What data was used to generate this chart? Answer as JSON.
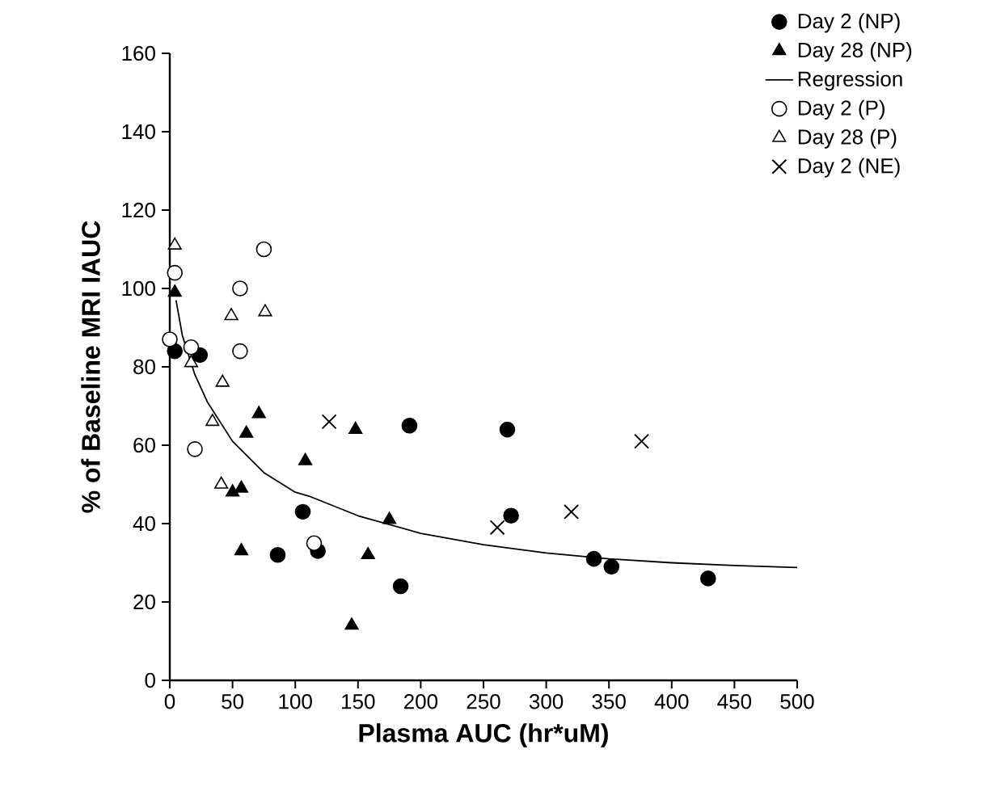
{
  "chart_data": {
    "type": "scatter",
    "xlabel": "Plasma AUC (hr*uM)",
    "ylabel": "% of Baseline MRI IAUC",
    "xlim": [
      0,
      500
    ],
    "ylim": [
      0,
      160
    ],
    "xticks": [
      0,
      50,
      100,
      150,
      200,
      250,
      300,
      350,
      400,
      450,
      500
    ],
    "yticks": [
      0,
      20,
      40,
      60,
      80,
      100,
      120,
      140,
      160
    ],
    "legend": "top right",
    "grid": false,
    "series": [
      {
        "name": "Day 2 (NP)",
        "color": "#000000",
        "marker": "circle",
        "x": [
          4,
          24,
          106,
          118,
          86,
          184,
          191,
          269,
          272,
          338,
          352,
          429
        ],
        "values": [
          84,
          83,
          43,
          33,
          32,
          24,
          65,
          64,
          42,
          31,
          29,
          26
        ]
      },
      {
        "name": "Day 28 (NP)",
        "color": "#000000",
        "marker": "triangle",
        "x": [
          4,
          71,
          61,
          50,
          57,
          57,
          108,
          148,
          158,
          175,
          145
        ],
        "values": [
          99,
          68,
          63,
          48,
          49,
          33,
          56,
          64,
          32,
          41,
          14
        ]
      },
      {
        "name": "Regression",
        "type": "line",
        "color": "#000000",
        "marker": "none",
        "x": [
          5,
          10,
          20,
          30,
          50,
          75,
          100,
          111,
          150,
          200,
          250,
          300,
          350,
          400,
          450,
          500
        ],
        "values": [
          97,
          88,
          78,
          71,
          61,
          53,
          48,
          47,
          42,
          37.5,
          34.6,
          32.5,
          31,
          30,
          29.3,
          28.8
        ]
      },
      {
        "name": "Day 2 (P)",
        "color": "#ffffff",
        "marker": "circle",
        "x": [
          0,
          4,
          17,
          20,
          56,
          56,
          75,
          115
        ],
        "values": [
          87,
          104,
          85,
          59,
          84,
          100,
          110,
          35
        ]
      },
      {
        "name": "Day 28 (P)",
        "color": "#ffffff",
        "marker": "triangle",
        "x": [
          4,
          17,
          34,
          41,
          42,
          49,
          76
        ],
        "values": [
          111,
          81,
          66,
          50,
          76,
          93,
          94
        ]
      },
      {
        "name": "Day 2 (NE)",
        "color": "#000000",
        "marker": "cross",
        "x": [
          127,
          261,
          320,
          376
        ],
        "values": [
          66,
          39,
          43,
          61
        ]
      }
    ]
  }
}
